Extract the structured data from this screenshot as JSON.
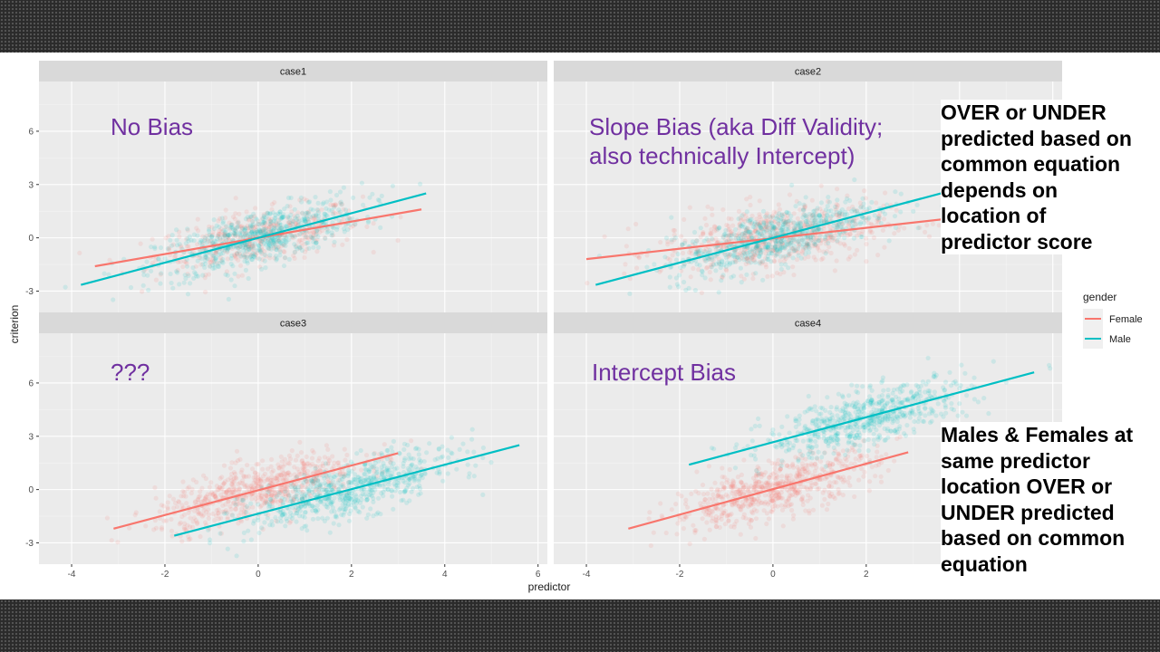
{
  "chart_data": {
    "type": "scatter",
    "facet_layout": "2x2",
    "xlabel": "predictor",
    "ylabel": "criterion",
    "xlim": [
      -4.7,
      6.2
    ],
    "ylim": [
      -4.2,
      8.8
    ],
    "x_ticks": [
      -4,
      -2,
      0,
      2,
      4,
      6
    ],
    "y_ticks": [
      -3,
      0,
      3,
      6
    ],
    "legend": {
      "title": "gender",
      "position": "right",
      "entries": [
        {
          "name": "Female",
          "color": "#F8766D"
        },
        {
          "name": "Male",
          "color": "#00BFC4"
        }
      ]
    },
    "panels": [
      {
        "title": "case1",
        "series": [
          {
            "name": "Female",
            "cx": 0,
            "cy": 0,
            "sx": 1.1,
            "sy": 0.75,
            "slope": 0.45,
            "line": [
              [
                -3.5,
                -1.6
              ],
              [
                3.5,
                1.6
              ]
            ],
            "overplotted": true
          },
          {
            "name": "Male",
            "cx": 0,
            "cy": 0,
            "sx": 1.1,
            "sy": 0.75,
            "slope": 0.7,
            "line": [
              [
                -3.8,
                -2.65
              ],
              [
                3.6,
                2.5
              ]
            ]
          }
        ]
      },
      {
        "title": "case2",
        "series": [
          {
            "name": "Female",
            "cx": 0,
            "cy": 0,
            "sx": 1.2,
            "sy": 0.9,
            "slope": 0.3,
            "line": [
              [
                -4,
                -1.2
              ],
              [
                4,
                1.15
              ]
            ]
          },
          {
            "name": "Male",
            "cx": 0,
            "cy": 0,
            "sx": 1.1,
            "sy": 0.75,
            "slope": 0.7,
            "line": [
              [
                -3.8,
                -2.65
              ],
              [
                3.6,
                2.5
              ]
            ]
          }
        ]
      },
      {
        "title": "case3",
        "series": [
          {
            "name": "Female",
            "cx": 0,
            "cy": 0,
            "sx": 1.1,
            "sy": 0.75,
            "slope": 0.7,
            "line": [
              [
                -3.1,
                -2.2
              ],
              [
                3,
                2.05
              ]
            ]
          },
          {
            "name": "Male",
            "cx": 2,
            "cy": 0,
            "sx": 1.1,
            "sy": 0.75,
            "slope": 0.7,
            "line": [
              [
                -1.8,
                -2.6
              ],
              [
                5.6,
                2.5
              ]
            ]
          }
        ]
      },
      {
        "title": "case4",
        "series": [
          {
            "name": "Female",
            "cx": 0,
            "cy": 0,
            "sx": 1.1,
            "sy": 0.75,
            "slope": 0.7,
            "line": [
              [
                -3.1,
                -2.2
              ],
              [
                2.9,
                2.1
              ]
            ]
          },
          {
            "name": "Male",
            "cx": 2,
            "cy": 4,
            "sx": 1.1,
            "sy": 0.75,
            "slope": 0.7,
            "line": [
              [
                -1.8,
                1.4
              ],
              [
                5.6,
                6.6
              ]
            ]
          }
        ]
      }
    ]
  },
  "annotations": {
    "case1": "No Bias",
    "case2": [
      "Slope Bias (aka Diff Validity;",
      "also technically Intercept)"
    ],
    "case3": "???",
    "case4": "Intercept Bias"
  },
  "callouts": {
    "top": [
      "OVER or UNDER",
      "predicted based on",
      "common equation",
      "depends on",
      "location of",
      "predictor score"
    ],
    "bottom": [
      "Males & Females at",
      "same predictor",
      "location OVER or",
      "UNDER predicted",
      "based on common",
      "equation"
    ]
  }
}
